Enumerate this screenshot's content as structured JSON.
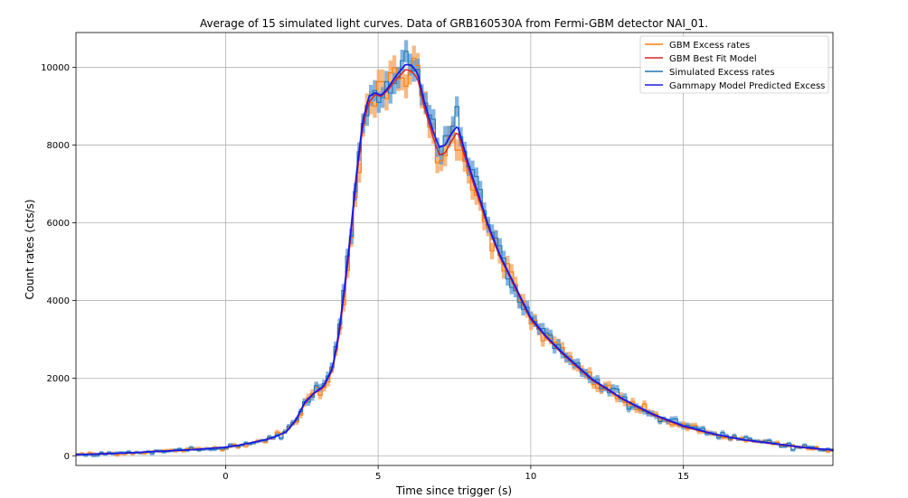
{
  "chart_data": {
    "type": "line",
    "title": "Average of 15 simulated light curves. Data of GRB160530A from Fermi-GBM detector NAI_01.",
    "xlabel": "Time since trigger (s)",
    "ylabel": "Count rates (cts/s)",
    "xlim": [
      -4.9,
      19.9
    ],
    "ylim": [
      -250,
      10900
    ],
    "xticks": [
      0,
      5,
      10,
      15
    ],
    "yticks": [
      0,
      2000,
      4000,
      6000,
      8000,
      10000
    ],
    "grid": true,
    "legend_position": "top-right",
    "legend": [
      "GBM Excess rates",
      "GBM Best Fit Model",
      "Simulated Excess rates",
      "Gammapy Model Predicted Excess"
    ],
    "colors": {
      "gbm_excess": "#ff7f0e",
      "gbm_excess_band": "#f5a15a",
      "gbm_model": "#d62728",
      "sim_excess": "#1f77b4",
      "sim_excess_band": "#5b9bd5",
      "gammapy_model": "#1a1ae6"
    },
    "model_points": {
      "x": [
        -4.9,
        -4,
        -3,
        -2,
        -1,
        0,
        0.5,
        1,
        1.5,
        2,
        2.3,
        2.6,
        2.9,
        3.2,
        3.5,
        3.7,
        3.9,
        4.1,
        4.3,
        4.5,
        4.7,
        4.9,
        5.1,
        5.3,
        5.6,
        5.9,
        6.1,
        6.3,
        6.5,
        6.8,
        7.0,
        7.2,
        7.4,
        7.6,
        7.8,
        8.0,
        8.3,
        8.6,
        9.0,
        9.5,
        10,
        10.5,
        11,
        12,
        13,
        14,
        15,
        16,
        17,
        18,
        19,
        19.9
      ],
      "gbm_best_fit": [
        30,
        50,
        80,
        120,
        160,
        220,
        280,
        360,
        450,
        620,
        900,
        1350,
        1600,
        1750,
        2200,
        3000,
        4200,
        5600,
        7200,
        8500,
        9100,
        9300,
        9250,
        9400,
        9700,
        9950,
        9900,
        9700,
        9000,
        8200,
        7750,
        7800,
        8100,
        8350,
        7800,
        7300,
        6600,
        5900,
        5100,
        4300,
        3500,
        3050,
        2650,
        1950,
        1450,
        1050,
        750,
        550,
        400,
        300,
        200,
        140
      ],
      "gammapy_predicted": [
        30,
        50,
        80,
        120,
        160,
        220,
        280,
        360,
        450,
        620,
        920,
        1380,
        1620,
        1780,
        2250,
        3100,
        4350,
        5750,
        7350,
        8650,
        9250,
        9350,
        9280,
        9450,
        9800,
        10080,
        10050,
        9850,
        9150,
        8350,
        7950,
        8000,
        8300,
        8500,
        7950,
        7400,
        6700,
        5950,
        5150,
        4350,
        3550,
        3080,
        2680,
        1980,
        1470,
        1070,
        770,
        560,
        410,
        310,
        210,
        150
      ]
    },
    "noise_scale": {
      "gbm_excess": 0.04,
      "sim_excess": 0.025,
      "min_abs": 40
    }
  }
}
